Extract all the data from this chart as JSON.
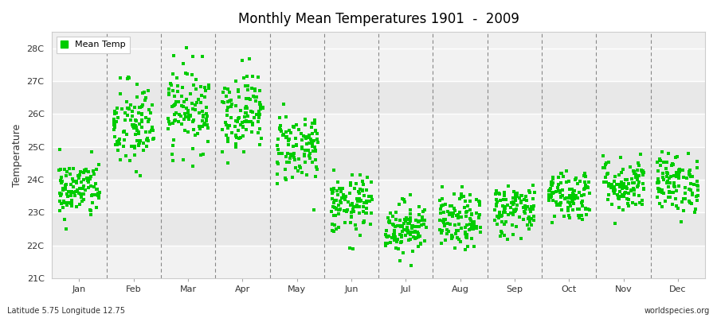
{
  "title": "Monthly Mean Temperatures 1901  -  2009",
  "ylabel": "Temperature",
  "xlabel": "",
  "subtitle_left": "Latitude 5.75 Longitude 12.75",
  "subtitle_right": "worldspecies.org",
  "legend_label": "Mean Temp",
  "dot_color": "#00CC00",
  "background_color": "#FFFFFF",
  "plot_bg_light": "#F0F0F0",
  "plot_bg_dark": "#E0E0E0",
  "grid_line_color": "#FFFFFF",
  "dashed_line_color": "#888888",
  "ylim": [
    21.0,
    28.5
  ],
  "ytick_labels": [
    "21C",
    "22C",
    "23C",
    "24C",
    "25C",
    "26C",
    "27C",
    "28C"
  ],
  "ytick_values": [
    21,
    22,
    23,
    24,
    25,
    26,
    27,
    28
  ],
  "months": [
    "Jan",
    "Feb",
    "Mar",
    "Apr",
    "May",
    "Jun",
    "Jul",
    "Aug",
    "Sep",
    "Oct",
    "Nov",
    "Dec"
  ],
  "month_centers": [
    1,
    2,
    3,
    4,
    5,
    6,
    7,
    8,
    9,
    10,
    11,
    12
  ],
  "n_years": 109,
  "seed": 42,
  "monthly_means": [
    23.7,
    25.6,
    26.2,
    26.1,
    25.0,
    23.2,
    22.55,
    22.7,
    23.1,
    23.55,
    23.85,
    23.9
  ],
  "monthly_stds": [
    0.45,
    0.7,
    0.65,
    0.6,
    0.55,
    0.45,
    0.4,
    0.42,
    0.4,
    0.4,
    0.42,
    0.45
  ]
}
